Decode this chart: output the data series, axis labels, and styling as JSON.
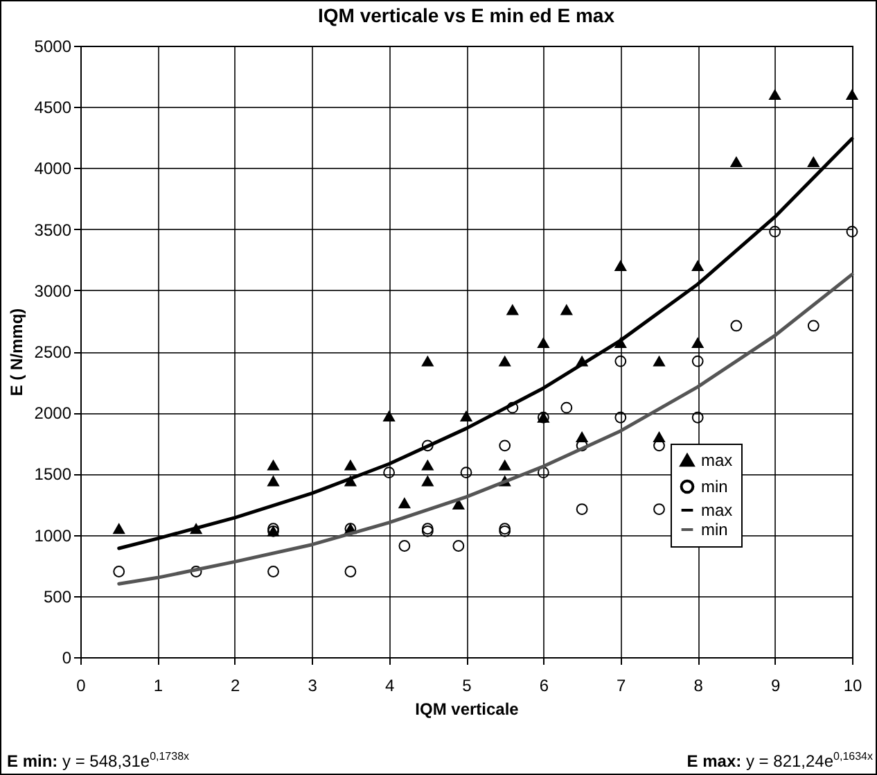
{
  "chart_data": {
    "type": "scatter",
    "title": "IQM verticale vs E min ed E max",
    "xlabel": "IQM verticale",
    "ylabel": "E ( N/mmq)",
    "annotations": [
      "E min: y = 548,31e$^{0,1738x}$",
      "E max: y = 821,24e$^{0,1634x}$"
    ],
    "xlim": [
      0,
      10
    ],
    "xticks": [
      0,
      1,
      2,
      3,
      4,
      5,
      6,
      7,
      8,
      9,
      10
    ],
    "ylim": [
      0,
      5000
    ],
    "yticks": [
      0,
      500,
      1000,
      1500,
      2000,
      2500,
      3000,
      3500,
      4000,
      4500,
      5000
    ],
    "grid": true,
    "legend": "bottom right",
    "series": [
      {
        "name": "max",
        "marker": "triangle",
        "color": "#000000",
        "x": [
          0.5,
          1.5,
          2.5,
          2.5,
          2.5,
          3.5,
          3.5,
          3.5,
          4,
          4.2,
          4.5,
          4.5,
          4.5,
          4.9,
          5,
          5.5,
          5.5,
          5.5,
          5.6,
          6,
          6,
          6.3,
          6.5,
          6.5,
          7,
          7,
          7.5,
          7.5,
          8,
          8,
          8.5,
          9,
          9.5,
          10
        ],
        "values": [
          1050,
          1050,
          1570,
          1440,
          1030,
          1570,
          1440,
          1050,
          1970,
          1260,
          2420,
          1570,
          1440,
          1250,
          1970,
          2420,
          1570,
          1440,
          2840,
          2570,
          1960,
          2840,
          2420,
          1800,
          3200,
          2570,
          2420,
          1800,
          3200,
          2570,
          4050,
          4600,
          4050,
          4600
        ]
      },
      {
        "name": "min",
        "marker": "circle",
        "color": "#000000",
        "x": [
          0.5,
          1.5,
          2.5,
          2.5,
          2.5,
          3.5,
          3.5,
          4,
          4.2,
          4.5,
          4.5,
          4.5,
          4.9,
          5,
          5.5,
          5.5,
          5.5,
          5.6,
          6,
          6,
          6.3,
          6.5,
          6.5,
          7,
          7,
          7.5,
          7.5,
          8,
          8,
          8.5,
          9,
          9.5,
          10
        ],
        "values": [
          700,
          700,
          1050,
          1030,
          700,
          1050,
          700,
          1510,
          910,
          1730,
          1050,
          1030,
          910,
          1510,
          1730,
          1050,
          1030,
          2040,
          1960,
          1510,
          2040,
          1730,
          1210,
          2420,
          1960,
          1730,
          1210,
          2420,
          1960,
          2710,
          3480,
          2710,
          3480
        ]
      },
      {
        "name": "max",
        "type": "line",
        "color": "#000000",
        "x": [
          0.5,
          1,
          2,
          3,
          4,
          5,
          6,
          7,
          8,
          9,
          10
        ],
        "values": [
          890,
          970,
          1140,
          1340,
          1580,
          1870,
          2200,
          2590,
          3050,
          3600,
          4240
        ]
      },
      {
        "name": "min",
        "type": "line",
        "color": "#555555",
        "x": [
          0.5,
          1,
          2,
          3,
          4,
          5,
          6,
          7,
          8,
          9,
          10
        ],
        "values": [
          600,
          650,
          780,
          920,
          1100,
          1310,
          1560,
          1850,
          2210,
          2630,
          3130
        ]
      }
    ]
  }
}
